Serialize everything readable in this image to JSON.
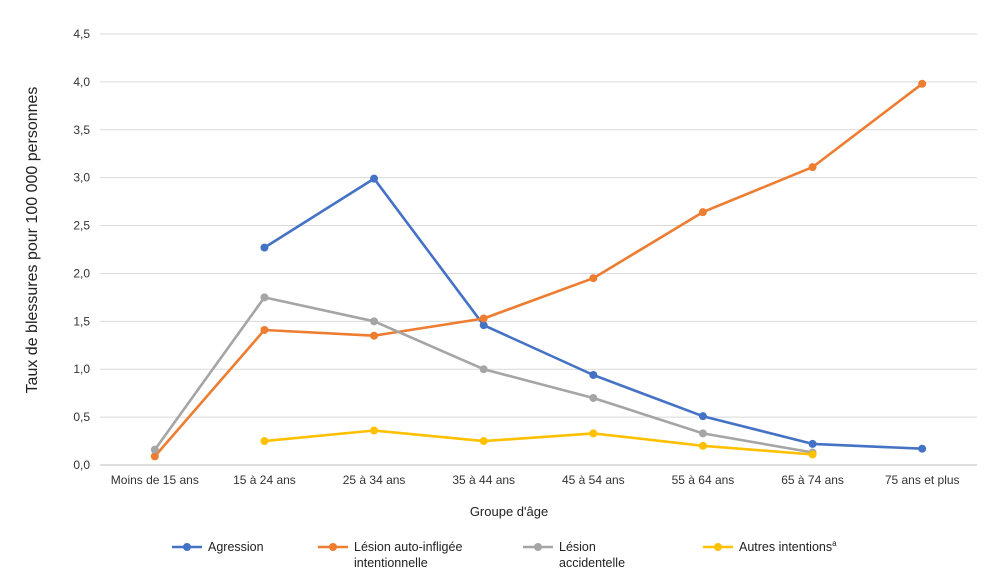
{
  "chart_data": {
    "type": "line",
    "title": "",
    "xlabel": "Groupe d'âge",
    "ylabel": "Taux de blessures pour 100 000 personnes",
    "ylim": [
      0,
      4.5
    ],
    "yticks": [
      "0,0",
      "0,5",
      "1,0",
      "1,5",
      "2,0",
      "2,5",
      "3,0",
      "3,5",
      "4,0",
      "4,5"
    ],
    "grid": true,
    "legend_position": "bottom",
    "categories": [
      "Moins de 15 ans",
      "15 à 24 ans",
      "25 à 34 ans",
      "35 à 44 ans",
      "45 à 54 ans",
      "55 à 64 ans",
      "65 à 74 ans",
      "75 ans et plus"
    ],
    "series": [
      {
        "name": "Agression",
        "color": "#4472C4",
        "values": [
          null,
          2.27,
          2.99,
          1.46,
          0.94,
          0.51,
          0.22,
          0.17
        ]
      },
      {
        "name": "Lésion auto-infligée intentionnelle",
        "legend_lines": [
          "Lésion auto-infligée",
          "intentionnelle"
        ],
        "color": "#ED7D31",
        "values": [
          0.09,
          1.41,
          1.35,
          1.53,
          1.95,
          2.64,
          3.11,
          3.98
        ]
      },
      {
        "name": "Lésion accidentelle",
        "legend_lines": [
          "Lésion",
          "accidentelle"
        ],
        "color": "#A5A5A5",
        "values": [
          0.16,
          1.75,
          1.5,
          1.0,
          0.7,
          0.33,
          0.13,
          null
        ]
      },
      {
        "name": "Autres intentions",
        "legend_lines": [
          "Autres intentions"
        ],
        "superscript": "a",
        "color": "#FFC000",
        "values": [
          null,
          0.25,
          0.36,
          0.25,
          0.33,
          0.2,
          0.11,
          null
        ]
      }
    ]
  }
}
